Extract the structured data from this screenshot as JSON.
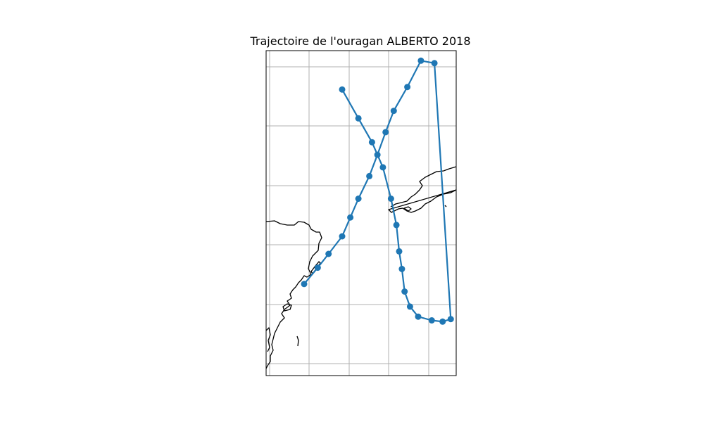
{
  "chart_data": {
    "type": "line",
    "title": "Trajectoire de l'ouragan ALBERTO 2018",
    "xlabel": "",
    "ylabel": "",
    "grid": true,
    "xlim": [
      -88.1,
      -81.1
    ],
    "ylim": [
      18.2,
      44.1
    ],
    "series_color": "#1f77b4",
    "series": [
      {
        "name": "ALBERTO 2018",
        "lon": [
          -85.3,
          -84.7,
          -84.2,
          -83.8,
          -83.5,
          -83.3,
          -83.2,
          -83.1,
          -83.0,
          -82.8,
          -82.5,
          -82.0,
          -81.6,
          -81.3,
          -81.9,
          -82.4,
          -82.9,
          -83.4,
          -83.7,
          -84.0,
          -84.3,
          -84.7,
          -85.0,
          -85.3,
          -85.8,
          -86.2,
          -86.7
        ],
        "lat": [
          41.0,
          38.7,
          36.8,
          34.8,
          32.3,
          30.2,
          28.1,
          26.7,
          24.9,
          23.7,
          22.9,
          22.6,
          22.5,
          22.7,
          43.1,
          43.3,
          41.2,
          39.3,
          37.6,
          35.8,
          34.1,
          32.3,
          30.8,
          29.3,
          27.9,
          26.8,
          25.5
        ]
      }
    ]
  }
}
